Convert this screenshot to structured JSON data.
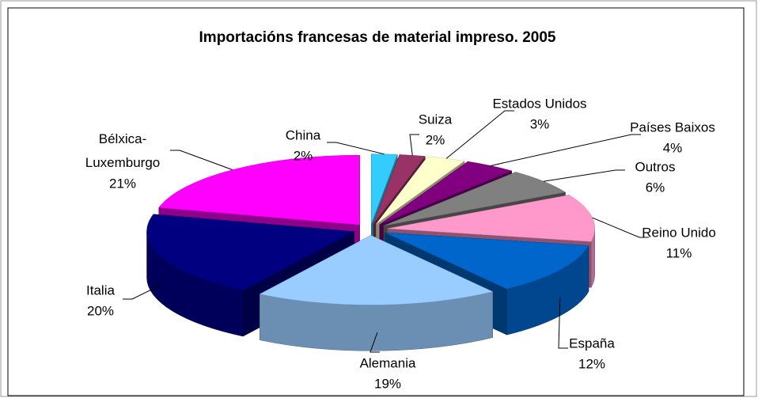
{
  "chart_data": {
    "type": "pie3d",
    "title": "Importacións francesas de material impreso. 2005",
    "categories": [
      "China",
      "Suiza",
      "Estados Unidos",
      "Países Baixos",
      "Outros",
      "Reino Unido",
      "España",
      "Alemania",
      "Italia",
      "Bélxica-Luxemburgo"
    ],
    "values": [
      2,
      2,
      3,
      4,
      6,
      11,
      12,
      19,
      20,
      21
    ],
    "value_labels": [
      "2%",
      "2%",
      "3%",
      "4%",
      "6%",
      "11%",
      "12%",
      "19%",
      "20%",
      "21%"
    ],
    "colors": [
      "#33ccff",
      "#993366",
      "#ffffcc",
      "#800080",
      "#808080",
      "#ff99cc",
      "#0066cc",
      "#99ccff",
      "#000080",
      "#ff00ff"
    ]
  }
}
